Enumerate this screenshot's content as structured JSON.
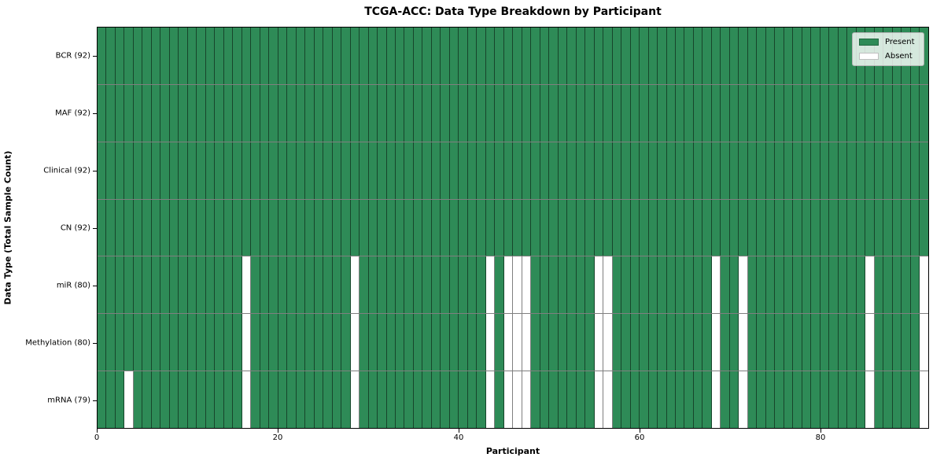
{
  "title": "TCGA-ACC: Data Type Breakdown by Participant",
  "chart_data": {
    "type": "heatmap",
    "title": "TCGA-ACC: Data Type Breakdown by Participant",
    "xlabel": "Participant",
    "ylabel": "Data Type (Total Sample Count)",
    "n_participants": 92,
    "x_ticks": [
      0,
      20,
      40,
      60,
      80
    ],
    "xlim": [
      0,
      92
    ],
    "grid": false,
    "legend_position": "upper right",
    "legend": {
      "entries": [
        {
          "label": "Present",
          "color": "#2e8b57"
        },
        {
          "label": "Absent",
          "color": "#ffffff"
        }
      ]
    },
    "colors": {
      "present": "#2e8b57",
      "absent": "#ffffff",
      "cell_edge": "rgba(0,0,0,0.5)"
    },
    "rows": [
      {
        "label": "BCR (92)",
        "data_type": "BCR",
        "total_samples": 92,
        "absent_participants": []
      },
      {
        "label": "MAF (92)",
        "data_type": "MAF",
        "total_samples": 92,
        "absent_participants": []
      },
      {
        "label": "Clinical (92)",
        "data_type": "Clinical",
        "total_samples": 92,
        "absent_participants": []
      },
      {
        "label": "CN (92)",
        "data_type": "CN",
        "total_samples": 92,
        "absent_participants": []
      },
      {
        "label": "miR (80)",
        "data_type": "miR",
        "total_samples": 80,
        "absent_participants": [
          16,
          28,
          43,
          45,
          46,
          47,
          55,
          56,
          68,
          71,
          85,
          91
        ]
      },
      {
        "label": "Methylation (80)",
        "data_type": "Methylation",
        "total_samples": 80,
        "absent_participants": [
          16,
          28,
          43,
          45,
          46,
          47,
          55,
          56,
          68,
          71,
          85,
          91
        ]
      },
      {
        "label": "mRNA (79)",
        "data_type": "mRNA",
        "total_samples": 79,
        "absent_participants": [
          3,
          16,
          28,
          43,
          45,
          46,
          47,
          55,
          56,
          68,
          71,
          85,
          91
        ]
      }
    ]
  }
}
